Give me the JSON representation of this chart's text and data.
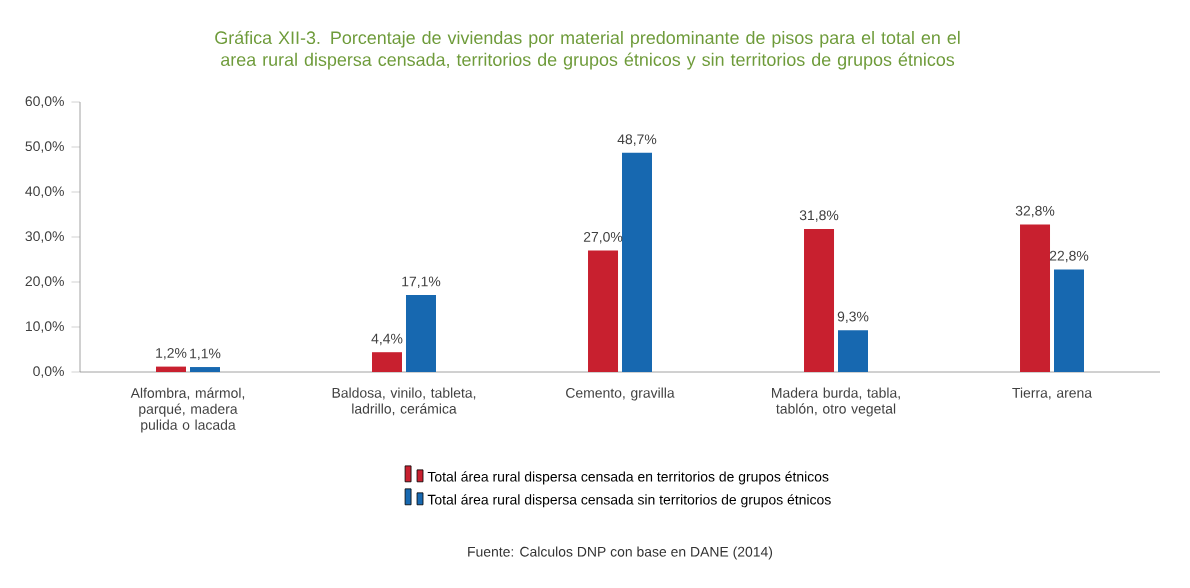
{
  "chart_data": {
    "type": "bar",
    "title": "Gráfica XII-3. Porcentaje de viviendas por material predominante de pisos para el total en el area rural dispersa censada, territorios de grupos étnicos y sin territorios de grupos étnicos",
    "categories": [
      "Alfombra, mármol, parqué, madera pulida o lacada",
      "Baldosa, vinilo, tableta, ladrillo, cerámica",
      "Cemento, gravilla",
      "Madera burda, tabla, tablón, otro vegetal",
      "Tierra, arena"
    ],
    "series": [
      {
        "name": "Total área rural dispersa censada en territorios de grupos étnicos",
        "color": "#c8202f",
        "values": [
          1.2,
          4.4,
          27.0,
          31.8,
          32.8
        ],
        "value_labels": [
          "1,2%",
          "4,4%",
          "27,0%",
          "31,8%",
          "32,8%"
        ]
      },
      {
        "name": "Total área rural dispersa censada sin territorios de grupos étnicos",
        "color": "#1768b0",
        "values": [
          1.1,
          17.1,
          48.7,
          9.3,
          22.8
        ],
        "value_labels": [
          "1,1%",
          "17,1%",
          "48,7%",
          "9,3%",
          "22,8%"
        ]
      }
    ],
    "ylim": [
      0,
      60
    ],
    "yticks": [
      {
        "value": 0,
        "label": "0,0%"
      },
      {
        "value": 10,
        "label": "10,0%"
      },
      {
        "value": 20,
        "label": "20,0%"
      },
      {
        "value": 30,
        "label": "30,0%"
      },
      {
        "value": 40,
        "label": "40,0%"
      },
      {
        "value": 50,
        "label": "50,0%"
      },
      {
        "value": 60,
        "label": "60,0%"
      }
    ],
    "legend": "bottom",
    "annotations": [
      "Fuente: Calculos DNP con base en DANE (2014)"
    ]
  }
}
